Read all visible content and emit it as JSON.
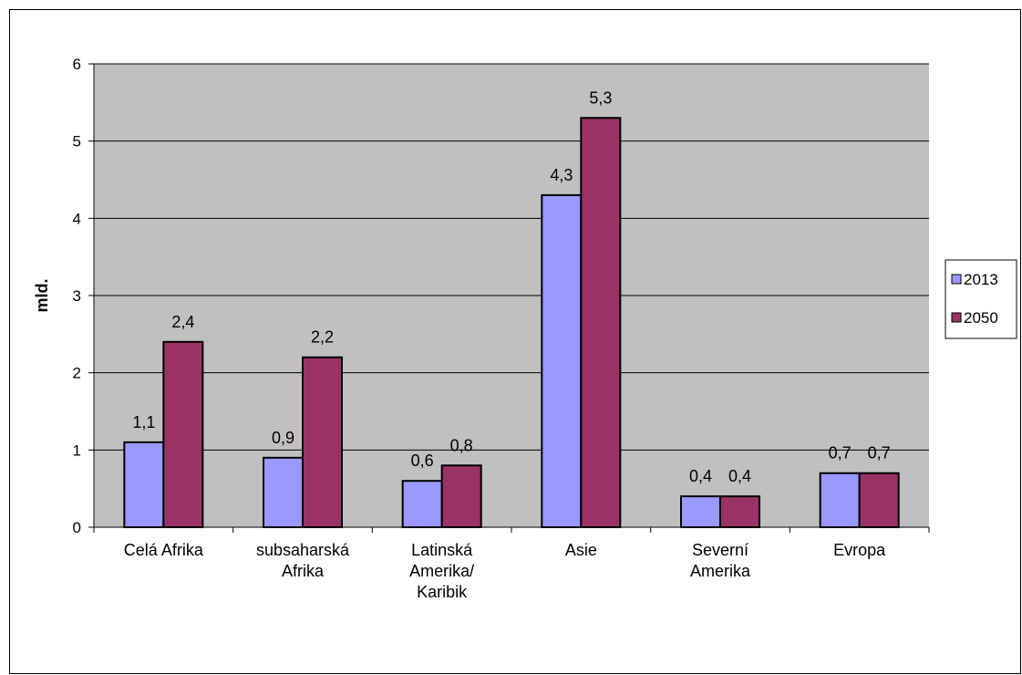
{
  "chart_data": {
    "type": "bar",
    "title": "",
    "xlabel": "",
    "ylabel": "mld.",
    "ylim": [
      0,
      6
    ],
    "yticks": [
      "0",
      "1",
      "2",
      "3",
      "4",
      "5",
      "6"
    ],
    "grid": true,
    "legend_position": "right",
    "categories": [
      [
        "Celá Afrika"
      ],
      [
        "subsaharská",
        "Afrika"
      ],
      [
        "Latinská",
        "Amerika/",
        "Karibik"
      ],
      [
        "Asie"
      ],
      [
        "Severní",
        "Amerika"
      ],
      [
        "Evropa"
      ]
    ],
    "series": [
      {
        "name": "2013",
        "color": "#9999ff",
        "values": [
          1.1,
          0.9,
          0.6,
          4.3,
          0.4,
          0.7
        ],
        "labels": [
          "1,1",
          "0,9",
          "0,6",
          "4,3",
          "0,4",
          "0,7"
        ]
      },
      {
        "name": "2050",
        "color": "#993366",
        "values": [
          2.4,
          2.2,
          0.8,
          5.3,
          0.4,
          0.7
        ],
        "labels": [
          "2,4",
          "2,2",
          "0,8",
          "5,3",
          "0,4",
          "0,7"
        ]
      }
    ],
    "plot_background": "#c0c0c0"
  }
}
